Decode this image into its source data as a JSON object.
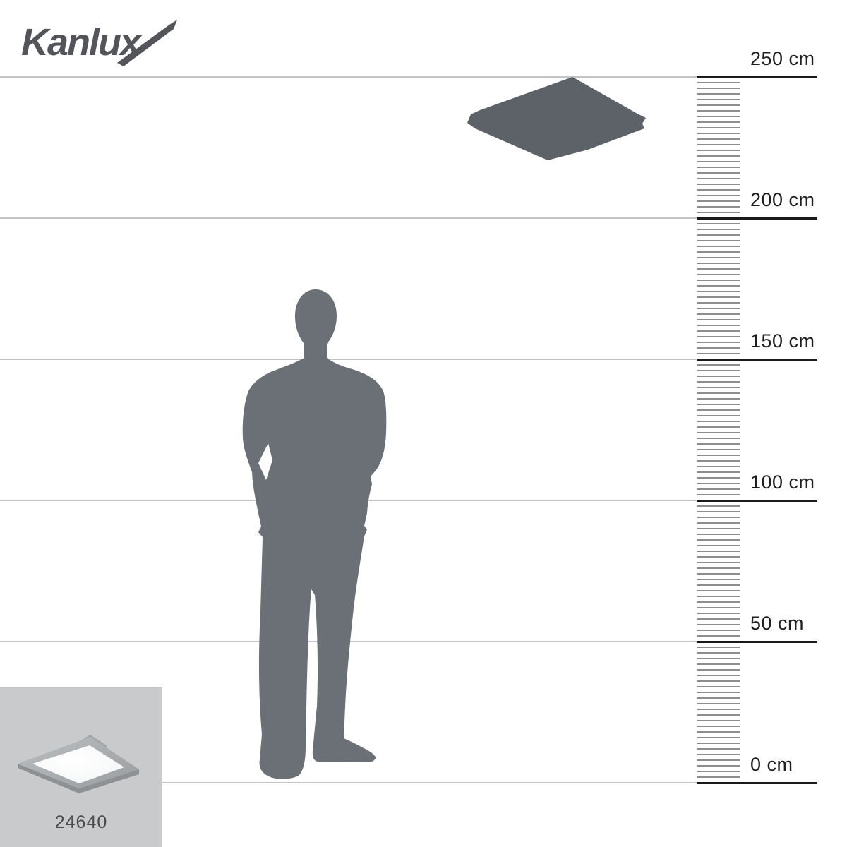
{
  "page": {
    "background_color": "#ffffff"
  },
  "brand": {
    "logo_text": "Kanlux",
    "logo_color": "#54555a"
  },
  "ruler": {
    "unit": "cm",
    "min_cm": 0,
    "max_cm": 250,
    "major_step_cm": 50,
    "minor_step_cm": 2,
    "labels": [
      "250 cm",
      "200 cm",
      "150 cm",
      "100 cm",
      "50 cm",
      "0 cm"
    ],
    "colors": {
      "gridline": "#c4c4c4",
      "major_line": "#1b1b1b",
      "tick": "#8f8f8f",
      "label": "#1f1f1f"
    }
  },
  "figures": {
    "person": {
      "icon": "standing-man-silhouette",
      "color": "#6b7076"
    },
    "lamp": {
      "icon": "ceiling-panel-light-silhouette",
      "color": "#5d6268"
    }
  },
  "product": {
    "code": "24640",
    "thumb_background": "#c9cacc",
    "code_color": "#4a4a4c"
  }
}
